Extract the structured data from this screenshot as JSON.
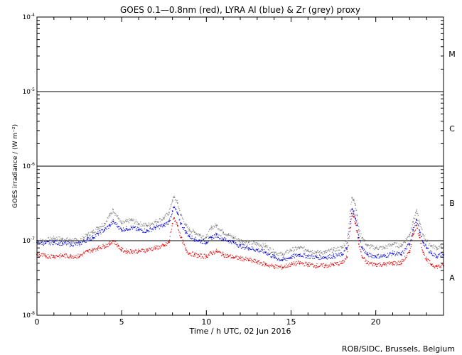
{
  "chart_data": {
    "type": "scatter",
    "title": "GOES 0.1—0.8nm (red), LYRA Al (blue) & Zr (grey) proxy",
    "xlabel": "Time / h UTC, 02 Jun 2016",
    "ylabel": "GOES irradiance / (W m⁻²)",
    "xlim": [
      0,
      24
    ],
    "ylim": [
      1e-08,
      0.0001
    ],
    "yscale": "log",
    "grid": false,
    "x_ticks": [
      0,
      5,
      10,
      15,
      20
    ],
    "x_tick_labels": [
      "0",
      "5",
      "10",
      "15",
      "20"
    ],
    "y_ticks": [
      {
        "value": 1e-08,
        "base": "10",
        "exp": "-8"
      },
      {
        "value": 1e-07,
        "base": "10",
        "exp": "-7"
      },
      {
        "value": 1e-06,
        "base": "10",
        "exp": "-6"
      },
      {
        "value": 1e-05,
        "base": "10",
        "exp": "-5"
      },
      {
        "value": 0.0001,
        "base": "10",
        "exp": "-4"
      }
    ],
    "threshold_lines": [
      1e-07,
      1e-06,
      1e-05
    ],
    "flare_classes": [
      {
        "label": "A",
        "value": 3.2e-08
      },
      {
        "label": "B",
        "value": 3.2e-07
      },
      {
        "label": "C",
        "value": 3.2e-06
      },
      {
        "label": "M",
        "value": 3.2e-05
      }
    ],
    "series": [
      {
        "color": "#808080",
        "x": [
          0.0,
          0.5,
          1.0,
          1.5,
          2.0,
          2.5,
          3.0,
          3.3,
          3.6,
          4.0,
          4.3,
          4.5,
          4.8,
          5.0,
          5.3,
          5.6,
          6.0,
          6.5,
          7.0,
          7.5,
          7.8,
          8.0,
          8.1,
          8.3,
          8.5,
          8.8,
          9.0,
          9.3,
          9.6,
          10.0,
          10.3,
          10.6,
          11.0,
          11.3,
          11.6,
          12.0,
          12.5,
          13.0,
          13.5,
          14.0,
          14.5,
          15.0,
          15.5,
          16.0,
          16.5,
          17.0,
          17.5,
          18.0,
          18.3,
          18.5,
          18.6,
          18.7,
          18.8,
          18.9,
          19.0,
          19.2,
          19.5,
          20.0,
          20.5,
          21.0,
          21.5,
          22.0,
          22.2,
          22.4,
          22.6,
          22.8,
          23.0,
          23.3,
          23.6,
          24.0
        ],
        "y": [
          1e-07,
          1e-07,
          1.08e-07,
          1.05e-07,
          1.02e-07,
          1e-07,
          1.2e-07,
          1.3e-07,
          1.5e-07,
          1.7e-07,
          2.2e-07,
          2.6e-07,
          2e-07,
          1.7e-07,
          1.8e-07,
          1.9e-07,
          1.7e-07,
          1.6e-07,
          1.8e-07,
          2e-07,
          2.4e-07,
          3.5e-07,
          3.8e-07,
          3.2e-07,
          2.2e-07,
          1.6e-07,
          1.4e-07,
          1.3e-07,
          1.2e-07,
          1.1e-07,
          1.5e-07,
          1.6e-07,
          1.3e-07,
          1.2e-07,
          1.1e-07,
          1e-07,
          9.5e-08,
          9e-08,
          8.5e-08,
          7e-08,
          6.5e-08,
          7.5e-08,
          8e-08,
          7.5e-08,
          7e-08,
          7e-08,
          7.5e-08,
          8e-08,
          1e-07,
          2.5e-07,
          3.8e-07,
          3.6e-07,
          3e-07,
          2.2e-07,
          1.4e-07,
          1.1e-07,
          8.5e-08,
          8e-08,
          8e-08,
          9e-08,
          8.5e-08,
          1.2e-07,
          1.8e-07,
          2.5e-07,
          1.7e-07,
          1.2e-07,
          1e-07,
          8.5e-08,
          8e-08,
          8.5e-08
        ]
      },
      {
        "color": "#0000cc",
        "x": [
          0.0,
          0.5,
          1.0,
          1.5,
          2.0,
          2.5,
          3.0,
          3.3,
          3.6,
          4.0,
          4.3,
          4.5,
          4.8,
          5.0,
          5.3,
          5.6,
          6.0,
          6.5,
          7.0,
          7.5,
          7.8,
          8.0,
          8.1,
          8.3,
          8.5,
          8.8,
          9.0,
          9.3,
          9.6,
          10.0,
          10.3,
          10.6,
          11.0,
          11.3,
          11.6,
          12.0,
          12.5,
          13.0,
          13.5,
          14.0,
          14.5,
          15.0,
          15.5,
          16.0,
          16.5,
          17.0,
          17.5,
          18.0,
          18.3,
          18.5,
          18.6,
          18.7,
          18.8,
          18.9,
          19.0,
          19.2,
          19.5,
          20.0,
          20.5,
          21.0,
          21.5,
          22.0,
          22.2,
          22.4,
          22.6,
          22.8,
          23.0,
          23.3,
          23.6,
          24.0
        ],
        "y": [
          9.5e-08,
          9.2e-08,
          9.5e-08,
          9.2e-08,
          9e-08,
          9e-08,
          1.05e-07,
          1.1e-07,
          1.25e-07,
          1.4e-07,
          1.6e-07,
          1.8e-07,
          1.55e-07,
          1.4e-07,
          1.45e-07,
          1.5e-07,
          1.4e-07,
          1.35e-07,
          1.5e-07,
          1.6e-07,
          1.8e-07,
          2.5e-07,
          2.8e-07,
          2.3e-07,
          1.7e-07,
          1.3e-07,
          1.15e-07,
          1.05e-07,
          1e-07,
          9.5e-08,
          1.1e-07,
          1.2e-07,
          1.05e-07,
          1e-07,
          9.5e-08,
          8.5e-08,
          8e-08,
          7.5e-08,
          7e-08,
          6e-08,
          5.5e-08,
          6e-08,
          6.5e-08,
          6.2e-08,
          6e-08,
          6e-08,
          6.2e-08,
          6.5e-08,
          8e-08,
          1.8e-07,
          2.6e-07,
          2.5e-07,
          2e-07,
          1.6e-07,
          1.1e-07,
          8e-08,
          6.5e-08,
          6.2e-08,
          6.2e-08,
          6.8e-08,
          6.5e-08,
          9e-08,
          1.4e-07,
          1.9e-07,
          1.3e-07,
          9.5e-08,
          8e-08,
          6.8e-08,
          6.2e-08,
          6.5e-08
        ]
      },
      {
        "color": "#dd0000",
        "x": [
          0.0,
          0.5,
          1.0,
          1.5,
          2.0,
          2.5,
          3.0,
          3.3,
          3.6,
          4.0,
          4.3,
          4.5,
          4.8,
          5.0,
          5.3,
          5.6,
          6.0,
          6.5,
          7.0,
          7.5,
          7.8,
          8.0,
          8.1,
          8.3,
          8.5,
          8.8,
          9.0,
          9.3,
          9.6,
          10.0,
          10.3,
          10.6,
          11.0,
          11.3,
          11.6,
          12.0,
          12.5,
          13.0,
          13.5,
          14.0,
          14.5,
          15.0,
          15.5,
          16.0,
          16.5,
          17.0,
          17.5,
          18.0,
          18.3,
          18.5,
          18.6,
          18.7,
          18.8,
          18.9,
          19.0,
          19.2,
          19.5,
          20.0,
          20.5,
          21.0,
          21.5,
          22.0,
          22.2,
          22.4,
          22.6,
          22.8,
          23.0,
          23.3,
          23.6,
          24.0
        ],
        "y": [
          6.5e-08,
          6.2e-08,
          6.2e-08,
          6.3e-08,
          6.2e-08,
          6.2e-08,
          7.2e-08,
          7.5e-08,
          8e-08,
          8.5e-08,
          9e-08,
          1e-07,
          8.5e-08,
          7.5e-08,
          7.2e-08,
          7.2e-08,
          7.2e-08,
          7.5e-08,
          8e-08,
          8.5e-08,
          9.5e-08,
          1.7e-07,
          2e-07,
          1.6e-07,
          1.1e-07,
          7.5e-08,
          6.8e-08,
          6.5e-08,
          6.2e-08,
          6.2e-08,
          6.8e-08,
          7.2e-08,
          6.5e-08,
          6.2e-08,
          6e-08,
          5.8e-08,
          5.5e-08,
          5.2e-08,
          4.8e-08,
          4.5e-08,
          4.4e-08,
          4.8e-08,
          5e-08,
          4.8e-08,
          4.6e-08,
          4.6e-08,
          4.8e-08,
          5e-08,
          6e-08,
          1.5e-07,
          2.3e-07,
          2.1e-07,
          1.7e-07,
          1.3e-07,
          9e-08,
          6e-08,
          5e-08,
          4.8e-08,
          4.8e-08,
          5e-08,
          5e-08,
          7e-08,
          1.2e-07,
          1.6e-07,
          1.1e-07,
          7e-08,
          5.5e-08,
          4.8e-08,
          4.5e-08,
          4.6e-08
        ]
      }
    ]
  },
  "credit": "ROB/SIDC, Brussels, Belgium"
}
